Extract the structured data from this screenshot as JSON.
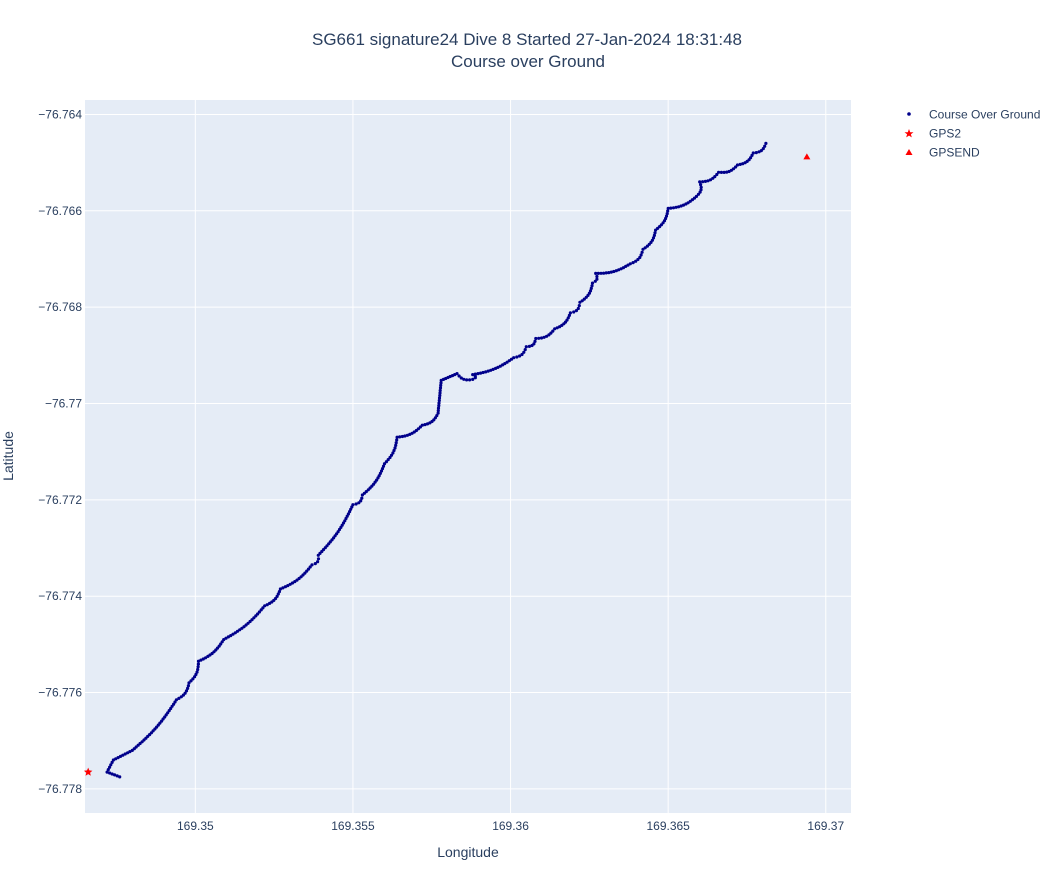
{
  "chart_data": {
    "type": "scatter",
    "title_line1": "SG661 signature24 Dive 8 Started 27-Jan-2024 18:31:48",
    "title_line2": "Course over Ground",
    "xlabel": "Longitude",
    "ylabel": "Latitude",
    "xlim": [
      169.3465,
      169.3708
    ],
    "ylim": [
      -76.7785,
      -76.7637
    ],
    "xticks": [
      169.35,
      169.355,
      169.36,
      169.365,
      169.37
    ],
    "xtick_labels": [
      "169.35",
      "169.355",
      "169.36",
      "169.365",
      "169.37"
    ],
    "yticks": [
      -76.764,
      -76.766,
      -76.768,
      -76.77,
      -76.772,
      -76.774,
      -76.776,
      -76.778
    ],
    "ytick_labels": [
      "−76.764",
      "−76.766",
      "−76.768",
      "−76.77",
      "−76.772",
      "−76.774",
      "−76.776",
      "−76.778"
    ],
    "grid": true,
    "legend_position": "top-right outside",
    "plot_bgcolor": "#e5ecf6",
    "series": [
      {
        "name": "Course Over Ground",
        "marker": "dot",
        "color": "#00008b",
        "track_points": [
          [
            169.3476,
            -76.77775
          ],
          [
            169.3472,
            -76.77765
          ],
          [
            169.3474,
            -76.7774
          ],
          [
            169.348,
            -76.7772
          ],
          [
            169.3494,
            -76.77615
          ],
          [
            169.3498,
            -76.7758
          ],
          [
            169.3501,
            -76.77535
          ],
          [
            169.3509,
            -76.7749
          ],
          [
            169.3522,
            -76.7742
          ],
          [
            169.3527,
            -76.77385
          ],
          [
            169.3537,
            -76.77335
          ],
          [
            169.3539,
            -76.77315
          ],
          [
            169.355,
            -76.7721
          ],
          [
            169.3553,
            -76.7719
          ],
          [
            169.356,
            -76.77125
          ],
          [
            169.3564,
            -76.7707
          ],
          [
            169.3572,
            -76.77045
          ],
          [
            169.3577,
            -76.7702
          ],
          [
            169.3578,
            -76.76952
          ],
          [
            169.3583,
            -76.76938
          ],
          [
            169.3588,
            -76.7695
          ],
          [
            169.3588,
            -76.7694
          ],
          [
            169.3601,
            -76.76905
          ],
          [
            169.3605,
            -76.76882
          ],
          [
            169.3608,
            -76.76865
          ],
          [
            169.3614,
            -76.76845
          ],
          [
            169.3619,
            -76.76812
          ],
          [
            169.3622,
            -76.7679
          ],
          [
            169.3626,
            -76.7675
          ],
          [
            169.3627,
            -76.7673
          ],
          [
            169.3638,
            -76.7671
          ],
          [
            169.3642,
            -76.7668
          ],
          [
            169.3646,
            -76.7664
          ],
          [
            169.365,
            -76.76595
          ],
          [
            169.3659,
            -76.7657
          ],
          [
            169.366,
            -76.7654
          ],
          [
            169.3666,
            -76.7652
          ],
          [
            169.3672,
            -76.76505
          ],
          [
            169.3677,
            -76.7648
          ],
          [
            169.3681,
            -76.7646
          ]
        ]
      },
      {
        "name": "GPS2",
        "marker": "star",
        "color": "#ff0000",
        "points": [
          [
            169.3466,
            -76.77765
          ]
        ]
      },
      {
        "name": "GPSEND",
        "marker": "triangle-up",
        "color": "#ff0000",
        "points": [
          [
            169.3694,
            -76.76488
          ]
        ]
      }
    ]
  }
}
